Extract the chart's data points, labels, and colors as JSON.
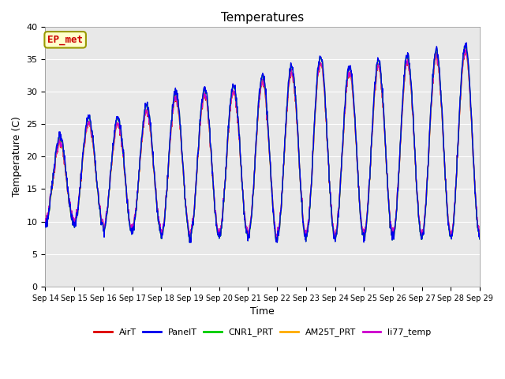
{
  "title": "Temperatures",
  "xlabel": "Time",
  "ylabel": "Temperature (C)",
  "ylim": [
    0,
    40
  ],
  "background_color": "#e8e8e8",
  "grid_color": "white",
  "series_order": [
    "AirT",
    "PanelT",
    "CNR1_PRT",
    "AM25T_PRT",
    "li77_temp"
  ],
  "series": {
    "AirT": {
      "color": "#dd0000",
      "lw": 1.0
    },
    "PanelT": {
      "color": "#0000ee",
      "lw": 1.0
    },
    "CNR1_PRT": {
      "color": "#00cc00",
      "lw": 1.0
    },
    "AM25T_PRT": {
      "color": "#ffaa00",
      "lw": 1.0
    },
    "li77_temp": {
      "color": "#cc00cc",
      "lw": 1.0
    }
  },
  "annotation_text": "EP_met",
  "annotation_color": "#cc0000",
  "annotation_bg": "#ffffcc",
  "annotation_border": "#999900",
  "x_tick_labels": [
    "Sep 14",
    "Sep 15",
    "Sep 16",
    "Sep 17",
    "Sep 18",
    "Sep 19",
    "Sep 20",
    "Sep 21",
    "Sep 22",
    "Sep 23",
    "Sep 24",
    "Sep 25",
    "Sep 26",
    "Sep 27",
    "Sep 28",
    "Sep 29"
  ],
  "y_ticks": [
    0,
    5,
    10,
    15,
    20,
    25,
    30,
    35,
    40
  ],
  "n_days": 15,
  "pts_per_day": 96
}
